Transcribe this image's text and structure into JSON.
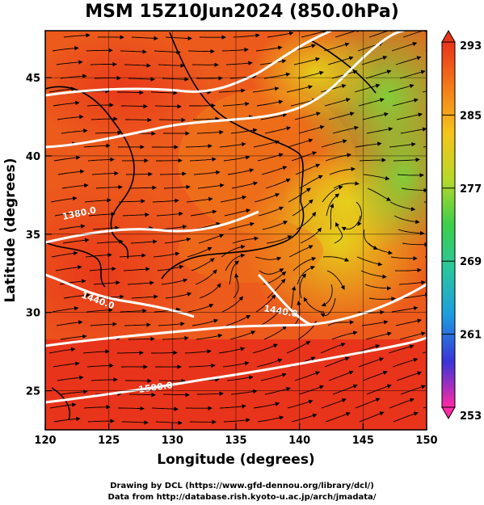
{
  "title": "MSM 15Z10Jun2024 (850.0hPa)",
  "map": {
    "lon_range": [
      120,
      150
    ],
    "lat_range": [
      22.5,
      48
    ],
    "xlabel": "Longitude (degrees)",
    "ylabel": "Latitude  (degrees)",
    "x_ticks": [
      "120",
      "125",
      "130",
      "135",
      "140",
      "145",
      "150"
    ],
    "y_ticks": [
      "25",
      "30",
      "35",
      "40",
      "45"
    ],
    "contour_labels": [
      "1380.0",
      "1440.0",
      "1440.0",
      "1500.0"
    ],
    "colors": {
      "warm": "#e8341a",
      "orange": "#f07a18",
      "yellow": "#e6d21c",
      "green": "#7ed33a",
      "land_outline": "#000000",
      "contour": "#ffffff"
    }
  },
  "colorbar": {
    "min": 253,
    "max": 293,
    "tick_labels": [
      "293",
      "285",
      "277",
      "269",
      "261",
      "253"
    ],
    "stops": [
      "#ff2aa6",
      "#3a34d8",
      "#1e9be0",
      "#29c6a0",
      "#3ccf4a",
      "#b8d828",
      "#f6c41c",
      "#f47c18",
      "#e8341a"
    ]
  },
  "credits": {
    "line1": "Drawing by DCL (https://www.gfd-dennou.org/library/dcl/)",
    "line2": "Data from http://database.rish.kyoto-u.ac.jp/arch/jmadata/"
  }
}
